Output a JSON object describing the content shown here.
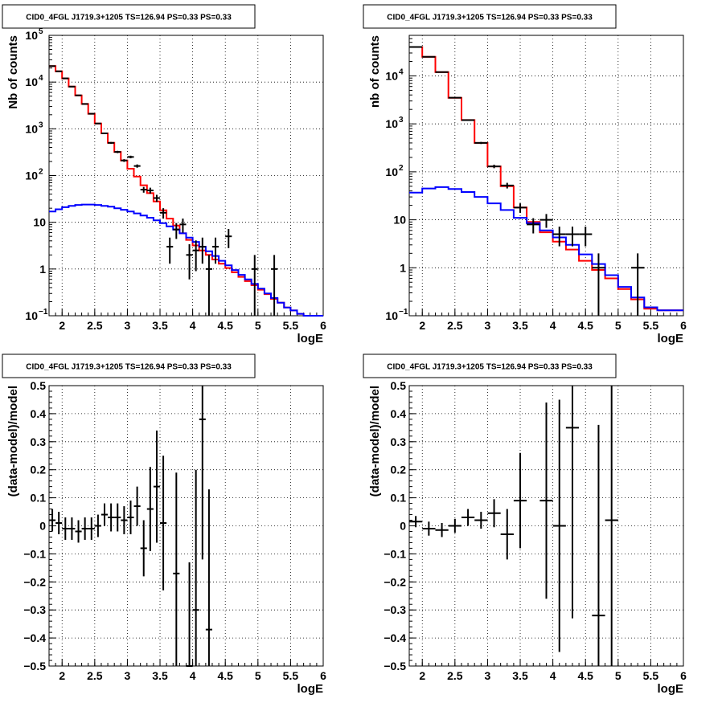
{
  "chart_data": [
    {
      "type": "line",
      "title": "CID0_4FGL J1719.3+1205 TS=126.94 PS=0.33 PS=0.33",
      "xlabel": "logE",
      "ylabel": "Nb of counts",
      "xlim": [
        1.8,
        6.0
      ],
      "ylim": [
        0.1,
        100000
      ],
      "log_y": true,
      "grid": true,
      "x_ticks": [
        "2",
        "2.5",
        "3",
        "3.5",
        "4",
        "4.5",
        "5",
        "5.5",
        "6"
      ],
      "y_ticks": [
        {
          "value": 0.1,
          "base": "10",
          "exp": "−1"
        },
        {
          "value": 1,
          "label": "1"
        },
        {
          "value": 10,
          "label": "10"
        },
        {
          "value": 100,
          "base": "10",
          "exp": "2"
        },
        {
          "value": 1000,
          "base": "10",
          "exp": "3"
        },
        {
          "value": 10000,
          "base": "10",
          "exp": "4"
        },
        {
          "value": 100000,
          "base": "10",
          "exp": "5"
        }
      ],
      "bin_width": 0.1,
      "series": [
        {
          "color": "#ff0000",
          "kind": "step",
          "x_start": 1.8,
          "values": [
            22000,
            17000,
            12000,
            8000,
            5200,
            3400,
            2100,
            1300,
            800,
            500,
            320,
            210,
            140,
            95,
            62,
            42,
            28,
            18,
            12,
            8.5,
            5.8,
            4.2,
            3.2,
            2.5,
            2.0,
            1.6,
            1.3,
            1.05,
            0.85,
            0.68,
            0.55,
            0.45,
            0.36,
            0.29,
            0.23,
            0.19,
            0.15,
            0.13,
            0.11,
            0.1,
            0.1,
            0.1
          ]
        },
        {
          "color": "#0000ff",
          "kind": "step",
          "x_start": 1.8,
          "values": [
            17,
            19,
            21,
            22.5,
            23.5,
            24,
            24,
            23.5,
            22.5,
            21.5,
            20,
            18.5,
            17,
            15.5,
            14,
            12.5,
            11,
            9.6,
            8.2,
            7.0,
            5.8,
            4.7,
            3.8,
            3.0,
            2.4,
            1.9,
            1.5,
            1.2,
            0.95,
            0.75,
            0.6,
            0.48,
            0.38,
            0.3,
            0.24,
            0.19,
            0.15,
            0.13,
            0.11,
            0.1,
            0.1,
            0.1
          ]
        },
        {
          "color": "#000000",
          "kind": "points",
          "x": [
            1.85,
            1.95,
            2.05,
            2.15,
            2.25,
            2.35,
            2.45,
            2.55,
            2.65,
            2.75,
            2.85,
            2.95,
            3.05,
            3.15,
            3.25,
            3.35,
            3.45,
            3.55,
            3.65,
            3.75,
            3.85,
            3.95,
            4.05,
            4.15,
            4.25,
            4.35,
            4.55,
            4.95,
            5.25
          ],
          "y": [
            22000,
            17000,
            12000,
            8000,
            5200,
            3400,
            2100,
            1300,
            800,
            500,
            320,
            210,
            250,
            160,
            50,
            48,
            33,
            16,
            3,
            7,
            9,
            2,
            2.5,
            3,
            1,
            3,
            5,
            1,
            1
          ],
          "yerr": [
            150,
            130,
            110,
            90,
            72,
            58,
            46,
            36,
            28,
            22,
            18,
            14,
            16,
            13,
            7,
            7,
            5.7,
            4,
            1.7,
            2.6,
            3,
            1.4,
            1.6,
            1.7,
            1,
            1.7,
            2.2,
            1,
            1
          ]
        }
      ]
    },
    {
      "type": "line",
      "title": "CID0_4FGL J1719.3+1205 TS=126.94 PS=0.33 PS=0.33",
      "xlabel": "logE",
      "ylabel": "nb of counts",
      "xlim": [
        1.8,
        6.0
      ],
      "ylim": [
        0.1,
        70000
      ],
      "log_y": true,
      "grid": true,
      "x_ticks": [
        "2",
        "2.5",
        "3",
        "3.5",
        "4",
        "4.5",
        "5",
        "5.5",
        "6"
      ],
      "y_ticks": [
        {
          "value": 0.1,
          "base": "10",
          "exp": "−1"
        },
        {
          "value": 1,
          "label": "1"
        },
        {
          "value": 10,
          "label": "10"
        },
        {
          "value": 100,
          "base": "10",
          "exp": "2"
        },
        {
          "value": 1000,
          "base": "10",
          "exp": "3"
        },
        {
          "value": 10000,
          "base": "10",
          "exp": "4"
        }
      ],
      "bin_width": 0.2,
      "series": [
        {
          "color": "#ff0000",
          "kind": "step",
          "x_start": 1.8,
          "values": [
            40000,
            25000,
            12000,
            3500,
            1200,
            400,
            130,
            50,
            18,
            9,
            5.5,
            3.5,
            2.4,
            1.4,
            0.9,
            0.6,
            0.36,
            0.22,
            0.14,
            0.13,
            0.13
          ]
        },
        {
          "color": "#0000ff",
          "kind": "step",
          "x_start": 1.8,
          "values": [
            37,
            45,
            48,
            44,
            38,
            30,
            22,
            16,
            11,
            8.5,
            6,
            4.3,
            3,
            1.9,
            1.2,
            0.7,
            0.4,
            0.24,
            0.15,
            0.13,
            0.13
          ]
        },
        {
          "color": "#000000",
          "kind": "points",
          "x": [
            1.9,
            2.1,
            2.3,
            2.5,
            2.7,
            2.9,
            3.1,
            3.3,
            3.5,
            3.7,
            3.9,
            4.1,
            4.3,
            4.5,
            4.7,
            5.3
          ],
          "y": [
            40000,
            25000,
            12000,
            3500,
            1200,
            400,
            130,
            52,
            18,
            8,
            10,
            5,
            5,
            5,
            1,
            1
          ],
          "yerr": [
            200,
            160,
            110,
            60,
            35,
            20,
            11,
            7,
            4,
            2.8,
            3.2,
            2.2,
            2.2,
            2.2,
            1,
            1
          ]
        }
      ]
    },
    {
      "type": "scatter",
      "title": "CID0_4FGL J1719.3+1205 TS=126.94 PS=0.33 PS=0.33",
      "xlabel": "logE",
      "ylabel": "(data-model)/model",
      "xlim": [
        1.8,
        6.0
      ],
      "ylim": [
        -0.5,
        0.5
      ],
      "log_y": false,
      "grid": true,
      "x_ticks": [
        "2",
        "2.5",
        "3",
        "3.5",
        "4",
        "4.5",
        "5",
        "5.5",
        "6"
      ],
      "y_ticks": [
        {
          "value": -0.5,
          "label": "−0.5"
        },
        {
          "value": -0.4,
          "label": "−0.4"
        },
        {
          "value": -0.3,
          "label": "−0.3"
        },
        {
          "value": -0.2,
          "label": "−0.2"
        },
        {
          "value": -0.1,
          "label": "−0.1"
        },
        {
          "value": 0,
          "label": "0"
        },
        {
          "value": 0.1,
          "label": "0.1"
        },
        {
          "value": 0.2,
          "label": "0.2"
        },
        {
          "value": 0.3,
          "label": "0.3"
        },
        {
          "value": 0.4,
          "label": "0.4"
        },
        {
          "value": 0.5,
          "label": "0.5"
        }
      ],
      "bin_width": 0.1,
      "series": [
        {
          "color": "#000000",
          "kind": "points",
          "x": [
            1.85,
            1.95,
            2.05,
            2.15,
            2.25,
            2.35,
            2.45,
            2.55,
            2.65,
            2.75,
            2.85,
            2.95,
            3.05,
            3.15,
            3.25,
            3.35,
            3.45,
            3.55,
            3.75,
            3.95,
            4.05,
            4.15,
            4.25
          ],
          "y": [
            0.02,
            0.01,
            -0.01,
            -0.01,
            -0.02,
            -0.01,
            -0.01,
            0.0,
            0.04,
            0.03,
            0.03,
            0.02,
            0.03,
            0.07,
            -0.08,
            0.06,
            0.14,
            0.01,
            -0.17,
            -0.5,
            -0.3,
            0.38,
            -0.37
          ],
          "yerr": [
            0.04,
            0.04,
            0.04,
            0.04,
            0.04,
            0.04,
            0.04,
            0.04,
            0.04,
            0.05,
            0.05,
            0.05,
            0.06,
            0.07,
            0.1,
            0.15,
            0.2,
            0.24,
            0.36,
            0.37,
            0.5,
            0.5,
            0.5
          ]
        }
      ]
    },
    {
      "type": "scatter",
      "title": "CID0_4FGL J1719.3+1205 TS=126.94 PS=0.33 PS=0.33",
      "xlabel": "logE",
      "ylabel": "(data-model)/model",
      "xlim": [
        1.8,
        6.0
      ],
      "ylim": [
        -0.5,
        0.5
      ],
      "log_y": false,
      "grid": true,
      "x_ticks": [
        "2",
        "2.5",
        "3",
        "3.5",
        "4",
        "4.5",
        "5",
        "5.5",
        "6"
      ],
      "y_ticks": [
        {
          "value": -0.5,
          "label": "−0.5"
        },
        {
          "value": -0.4,
          "label": "−0.4"
        },
        {
          "value": -0.3,
          "label": "−0.3"
        },
        {
          "value": -0.2,
          "label": "−0.2"
        },
        {
          "value": -0.1,
          "label": "−0.1"
        },
        {
          "value": 0,
          "label": "0"
        },
        {
          "value": 0.1,
          "label": "0.1"
        },
        {
          "value": 0.2,
          "label": "0.2"
        },
        {
          "value": 0.3,
          "label": "0.3"
        },
        {
          "value": 0.4,
          "label": "0.4"
        },
        {
          "value": 0.5,
          "label": "0.5"
        }
      ],
      "bin_width": 0.2,
      "series": [
        {
          "color": "#000000",
          "kind": "points",
          "x": [
            1.9,
            2.1,
            2.3,
            2.5,
            2.7,
            2.9,
            3.1,
            3.3,
            3.5,
            3.9,
            4.1,
            4.3,
            4.7,
            4.9
          ],
          "y": [
            0.015,
            -0.01,
            -0.015,
            0.0,
            0.03,
            0.02,
            0.045,
            -0.03,
            0.09,
            0.09,
            0.0,
            0.35,
            -0.32,
            0.02
          ],
          "yerr": [
            0.02,
            0.025,
            0.025,
            0.025,
            0.03,
            0.03,
            0.05,
            0.09,
            0.17,
            0.35,
            0.45,
            0.68,
            0.68,
            0.7
          ]
        }
      ]
    }
  ]
}
